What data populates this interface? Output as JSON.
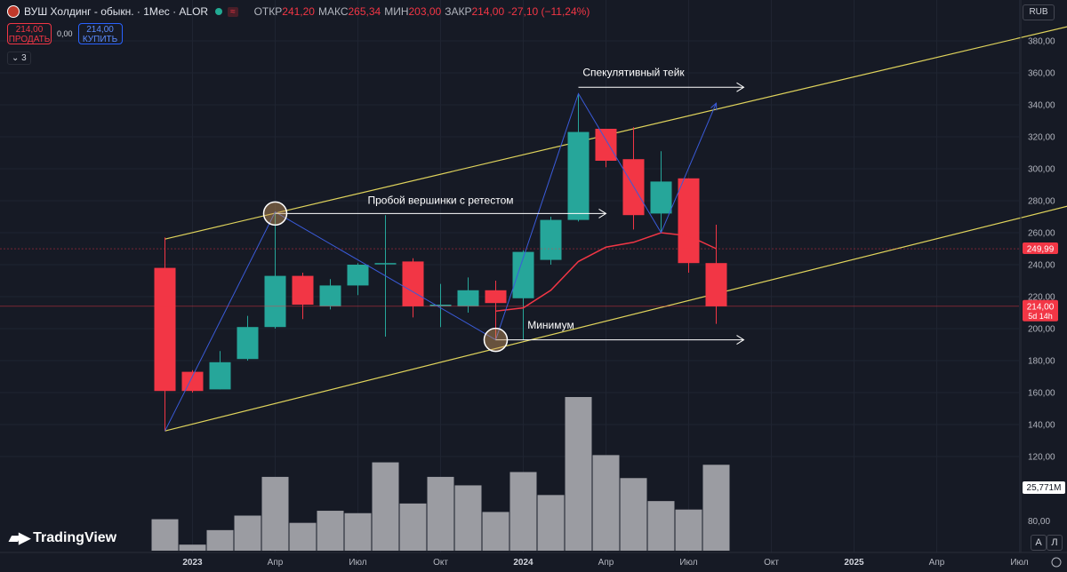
{
  "header": {
    "title": "ВУШ Холдинг - обыкн. · 1Мес · ALOR",
    "badge": "≈",
    "open_label": "ОТКР",
    "open": "241,20",
    "high_label": "МАКС",
    "high": "265,34",
    "low_label": "МИН",
    "low": "203,00",
    "close_label": "ЗАКР",
    "close": "214,00",
    "change": "-27,10 (−11,24%)"
  },
  "trade": {
    "sell_price": "214,00",
    "sell_label": "ПРОДАТЬ",
    "spread": "0,00",
    "buy_price": "214,00",
    "buy_label": "КУПИТЬ"
  },
  "indicators_toggle": "3",
  "currency": "RUB",
  "branding": "TradingView",
  "scale_buttons": {
    "auto": "A",
    "log": "Л"
  },
  "colors": {
    "up": "#26a69a",
    "down": "#f23645",
    "volume": "#9b9ca2",
    "ma": "#f23645",
    "channel": "#e0d45c",
    "zigzag": "#3a5bd9",
    "arrow": "#ffffff"
  },
  "chart_data": {
    "type": "candlestick",
    "timeframe": "1M",
    "ylim": [
      120,
      390
    ],
    "y_ticks": [
      120,
      140,
      160,
      180,
      200,
      220,
      240,
      260,
      280,
      300,
      320,
      340,
      360,
      380
    ],
    "y_tick_labels": [
      "120,00",
      "140,00",
      "160,00",
      "180,00",
      "200,00",
      "220,00",
      "240,00",
      "260,00",
      "280,00",
      "300,00",
      "320,00",
      "340,00",
      "360,00",
      "380,00"
    ],
    "volume_axis_label": "80,00",
    "x_ticks": [
      {
        "label": "2023",
        "date": "2023-01"
      },
      {
        "label": "Апр",
        "date": "2023-04"
      },
      {
        "label": "Июл",
        "date": "2023-07"
      },
      {
        "label": "Окт",
        "date": "2023-10"
      },
      {
        "label": "2024",
        "date": "2024-01"
      },
      {
        "label": "Апр",
        "date": "2024-04"
      },
      {
        "label": "Июл",
        "date": "2024-07"
      },
      {
        "label": "Окт",
        "date": "2024-10"
      },
      {
        "label": "2025",
        "date": "2025-01"
      },
      {
        "label": "Апр",
        "date": "2025-04"
      },
      {
        "label": "Июл",
        "date": "2025-07"
      }
    ],
    "candles": [
      {
        "date": "2022-12",
        "open": 238,
        "high": 257,
        "low": 136,
        "close": 161,
        "volume": 26
      },
      {
        "date": "2023-01",
        "open": 173,
        "high": 174,
        "low": 160,
        "close": 161,
        "volume": 5
      },
      {
        "date": "2023-02",
        "open": 162,
        "high": 186,
        "low": 162,
        "close": 179,
        "volume": 17
      },
      {
        "date": "2023-03",
        "open": 181,
        "high": 208,
        "low": 180,
        "close": 201,
        "volume": 29
      },
      {
        "date": "2023-04",
        "open": 201,
        "high": 273,
        "low": 200,
        "close": 233,
        "volume": 61
      },
      {
        "date": "2023-05",
        "open": 233,
        "high": 235,
        "low": 206,
        "close": 215,
        "volume": 23
      },
      {
        "date": "2023-06",
        "open": 214,
        "high": 231,
        "low": 212,
        "close": 227,
        "volume": 33
      },
      {
        "date": "2023-07",
        "open": 227,
        "high": 241,
        "low": 221,
        "close": 240,
        "volume": 31
      },
      {
        "date": "2023-08",
        "open": 241,
        "high": 271,
        "low": 195,
        "close": 241,
        "volume": 73
      },
      {
        "date": "2023-09",
        "open": 242,
        "high": 244,
        "low": 207,
        "close": 214,
        "volume": 39
      },
      {
        "date": "2023-10",
        "open": 215,
        "high": 228,
        "low": 201,
        "close": 215,
        "volume": 61
      },
      {
        "date": "2023-11",
        "open": 214,
        "high": 232,
        "low": 210,
        "close": 224,
        "volume": 54
      },
      {
        "date": "2023-12",
        "open": 224,
        "high": 230,
        "low": 193,
        "close": 216,
        "volume": 32
      },
      {
        "date": "2024-01",
        "open": 219,
        "high": 249,
        "low": 193,
        "close": 248,
        "volume": 65
      },
      {
        "date": "2024-02",
        "open": 243,
        "high": 270,
        "low": 240,
        "close": 268,
        "volume": 46
      },
      {
        "date": "2024-03",
        "open": 268,
        "high": 347,
        "low": 267,
        "close": 323,
        "volume": 127
      },
      {
        "date": "2024-04",
        "open": 325,
        "high": 325,
        "low": 301,
        "close": 305,
        "volume": 79
      },
      {
        "date": "2024-05",
        "open": 306,
        "high": 326,
        "low": 262,
        "close": 271,
        "volume": 60
      },
      {
        "date": "2024-06",
        "open": 272,
        "high": 311,
        "low": 260,
        "close": 292,
        "volume": 41
      },
      {
        "date": "2024-07",
        "open": 294,
        "high": 294,
        "low": 235,
        "close": 241,
        "volume": 34
      },
      {
        "date": "2024-08",
        "open": 241,
        "high": 265,
        "low": 203,
        "close": 214,
        "volume": 71
      }
    ],
    "ma": [
      {
        "date": "2023-12",
        "value": 211
      },
      {
        "date": "2024-01",
        "value": 213
      },
      {
        "date": "2024-02",
        "value": 224
      },
      {
        "date": "2024-03",
        "value": 242
      },
      {
        "date": "2024-04",
        "value": 251
      },
      {
        "date": "2024-05",
        "value": 254
      },
      {
        "date": "2024-06",
        "value": 260
      },
      {
        "date": "2024-07",
        "value": 258
      },
      {
        "date": "2024-08",
        "value": 250
      }
    ],
    "zigzag": [
      {
        "date": "2022-12",
        "value": 136
      },
      {
        "date": "2023-04",
        "value": 273
      },
      {
        "date": "2023-12",
        "value": 193
      },
      {
        "date": "2024-03",
        "value": 347
      },
      {
        "date": "2024-06",
        "value": 260
      },
      {
        "date": "2024-08",
        "value": 341
      }
    ],
    "channel_upper": [
      {
        "date": "2022-12",
        "value": 256
      },
      {
        "date": "2025-10",
        "value": 394
      }
    ],
    "channel_lower": [
      {
        "date": "2022-12",
        "value": 136
      },
      {
        "date": "2025-10",
        "value": 282
      }
    ],
    "markers": [
      {
        "date": "2023-04",
        "value": 272,
        "label": "marker-top"
      },
      {
        "date": "2023-12",
        "value": 193,
        "label": "marker-low"
      }
    ],
    "annotations": [
      {
        "text": "Спекулятивный тейк",
        "text_date": "2024-05",
        "text_value": 358,
        "from_date": "2024-03",
        "to_date": "2024-09",
        "value": 351
      },
      {
        "text": "Пробой вершинки с ретестом",
        "text_date": "2023-10",
        "text_value": 278,
        "from_date": "2023-04",
        "to_date": "2024-04",
        "value": 272
      },
      {
        "text": "Минимум",
        "text_date": "2024-02",
        "text_value": 200,
        "from_date": "2023-12",
        "to_date": "2024-09",
        "value": 193
      }
    ],
    "price_labels": [
      {
        "value": 249.99,
        "text": "249,99",
        "color": "#f23645"
      },
      {
        "value": 214,
        "text": "214,00",
        "subtext": "5d 14h",
        "color": "#f23645"
      }
    ],
    "volume_label": "25,771M"
  }
}
